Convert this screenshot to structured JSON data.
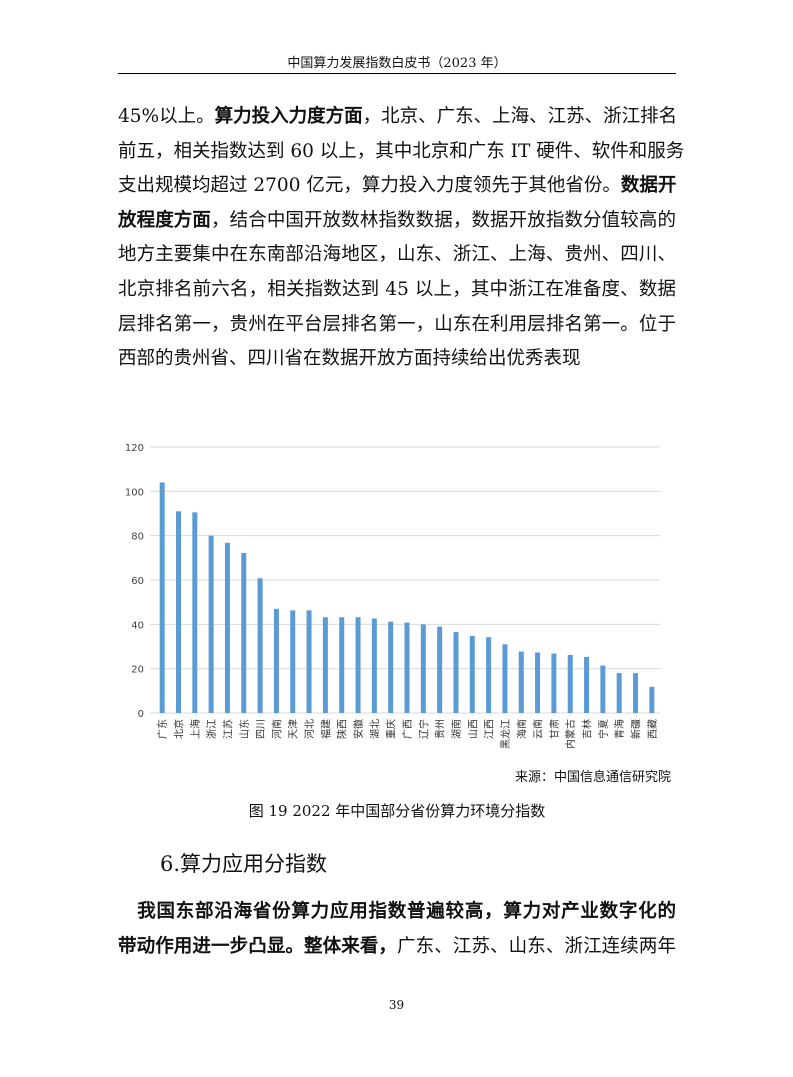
{
  "header": {
    "title": "中国算力发展指数白皮书（2023 年）"
  },
  "paragraph1": [
    [
      {
        "t": "45%以上。"
      },
      {
        "t": "算力投入力度方面",
        "b": true
      },
      {
        "t": "，北京、广东、上海、江苏、浙江排名"
      }
    ],
    [
      {
        "t": "前五，相关指数达到 60 以上，其中北京和广东 IT 硬件、软件和服务"
      }
    ],
    [
      {
        "t": "支出规模均超过 2700 亿元，算力投入力度领先于其他省份。"
      },
      {
        "t": "数据开",
        "b": true
      }
    ],
    [
      {
        "t": "放程度方面",
        "b": true
      },
      {
        "t": "，结合中国开放数林指数数据，数据开放指数分值较高的"
      }
    ],
    [
      {
        "t": "地方主要集中在东南部沿海地区，山东、浙江、上海、贵州、四川、"
      }
    ],
    [
      {
        "t": "北京排名前六名，相关指数达到 45 以上，其中浙江在准备度、数据"
      }
    ],
    [
      {
        "t": "层排名第一，贵州在平台层排名第一，山东在利用层排名第一。位于"
      }
    ],
    [
      {
        "t": "西部的贵州省、四川省在数据开放方面持续给出优秀表现"
      }
    ]
  ],
  "chart_data": {
    "type": "bar",
    "categories": [
      "广东",
      "北京",
      "上海",
      "浙江",
      "江苏",
      "山东",
      "四川",
      "河南",
      "天津",
      "河北",
      "福建",
      "陕西",
      "安徽",
      "湖北",
      "重庆",
      "广西",
      "辽宁",
      "贵州",
      "湖南",
      "山西",
      "江西",
      "黑龙江",
      "海南",
      "云南",
      "甘肃",
      "内蒙古",
      "吉林",
      "宁夏",
      "青海",
      "新疆",
      "西藏"
    ],
    "values": [
      104,
      91,
      90.5,
      80,
      76.8,
      72.2,
      60.8,
      47,
      46.3,
      46.3,
      43.2,
      43.2,
      43.2,
      42.6,
      41.2,
      40.8,
      40,
      39,
      36.5,
      34.8,
      34.2,
      31,
      27.7,
      27.3,
      26.8,
      26.2,
      25.3,
      21.4,
      18,
      18,
      11.8
    ],
    "ylim": [
      0,
      120
    ],
    "yticks": [
      0,
      20,
      40,
      60,
      80,
      100,
      120
    ],
    "grid": true,
    "bar_color": "#5b9bd5"
  },
  "source": "来源：中国信息通信研究院",
  "caption": "图 19 2022 年中国部分省份算力环境分指数",
  "section_title": "6.算力应用分指数",
  "paragraph2": [
    [
      {
        "t": "　我国东部沿海省份算力应用指数普遍较高，算力对产业数字化的",
        "b": true
      }
    ],
    [
      {
        "t": "带动作用进一步凸显。整体来看，",
        "b": true
      },
      {
        "t": "广东、江苏、山东、浙江连续两年"
      }
    ]
  ],
  "page_number": "39"
}
